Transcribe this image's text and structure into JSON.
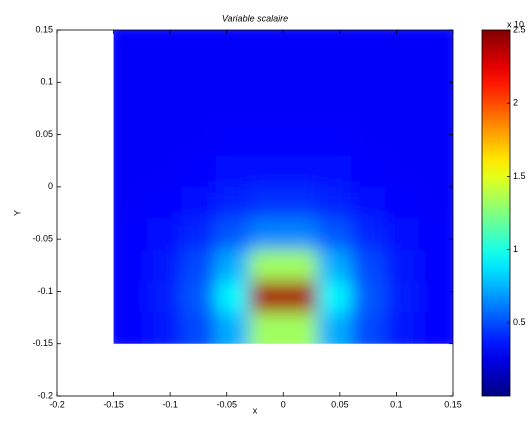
{
  "chart_data": {
    "type": "heatmap",
    "title": "Variable scalaire",
    "xlabel": "x",
    "ylabel": "Y",
    "x": [
      -0.135,
      -0.105,
      -0.075,
      -0.045,
      -0.015,
      0.015,
      0.045,
      0.075,
      0.105,
      0.135
    ],
    "y": [
      0.135,
      0.105,
      0.075,
      0.045,
      0.015,
      -0.015,
      -0.045,
      -0.075,
      -0.105,
      -0.135
    ],
    "z": [
      [
        0.3,
        0.3,
        0.3,
        0.3,
        0.3,
        0.3,
        0.3,
        0.3,
        0.3,
        0.3
      ],
      [
        0.3,
        0.3,
        0.3,
        0.3,
        0.3,
        0.3,
        0.3,
        0.3,
        0.3,
        0.3
      ],
      [
        0.3,
        0.3,
        0.3,
        0.3,
        0.3,
        0.3,
        0.3,
        0.3,
        0.3,
        0.3
      ],
      [
        0.3,
        0.3,
        0.3,
        0.31,
        0.31,
        0.31,
        0.31,
        0.3,
        0.3,
        0.3
      ],
      [
        0.3,
        0.3,
        0.31,
        0.33,
        0.34,
        0.34,
        0.33,
        0.31,
        0.3,
        0.3
      ],
      [
        0.3,
        0.32,
        0.35,
        0.39,
        0.43,
        0.43,
        0.39,
        0.35,
        0.32,
        0.3
      ],
      [
        0.31,
        0.34,
        0.41,
        0.53,
        0.64,
        0.64,
        0.53,
        0.41,
        0.34,
        0.31
      ],
      [
        0.32,
        0.36,
        0.49,
        0.74,
        1.33,
        1.33,
        0.74,
        0.49,
        0.36,
        0.32
      ],
      [
        0.32,
        0.38,
        0.53,
        0.92,
        2.4,
        2.4,
        0.92,
        0.53,
        0.38,
        0.32
      ],
      [
        0.32,
        0.36,
        0.49,
        0.74,
        1.33,
        1.33,
        0.74,
        0.49,
        0.36,
        0.32
      ]
    ],
    "xlim": [
      -0.2,
      0.15
    ],
    "ylim": [
      -0.2,
      0.15
    ],
    "xticks": [
      -0.2,
      -0.15,
      -0.1,
      -0.05,
      0,
      0.05,
      0.1,
      0.15
    ],
    "yticks": [
      -0.2,
      -0.15,
      -0.1,
      -0.05,
      0,
      0.05,
      0.1,
      0.15
    ],
    "colormap": "jet",
    "zlim": [
      0,
      2.5
    ],
    "zticks": [
      0.5,
      1,
      1.5,
      2,
      2.5
    ],
    "colorbar_label": "x 10"
  }
}
